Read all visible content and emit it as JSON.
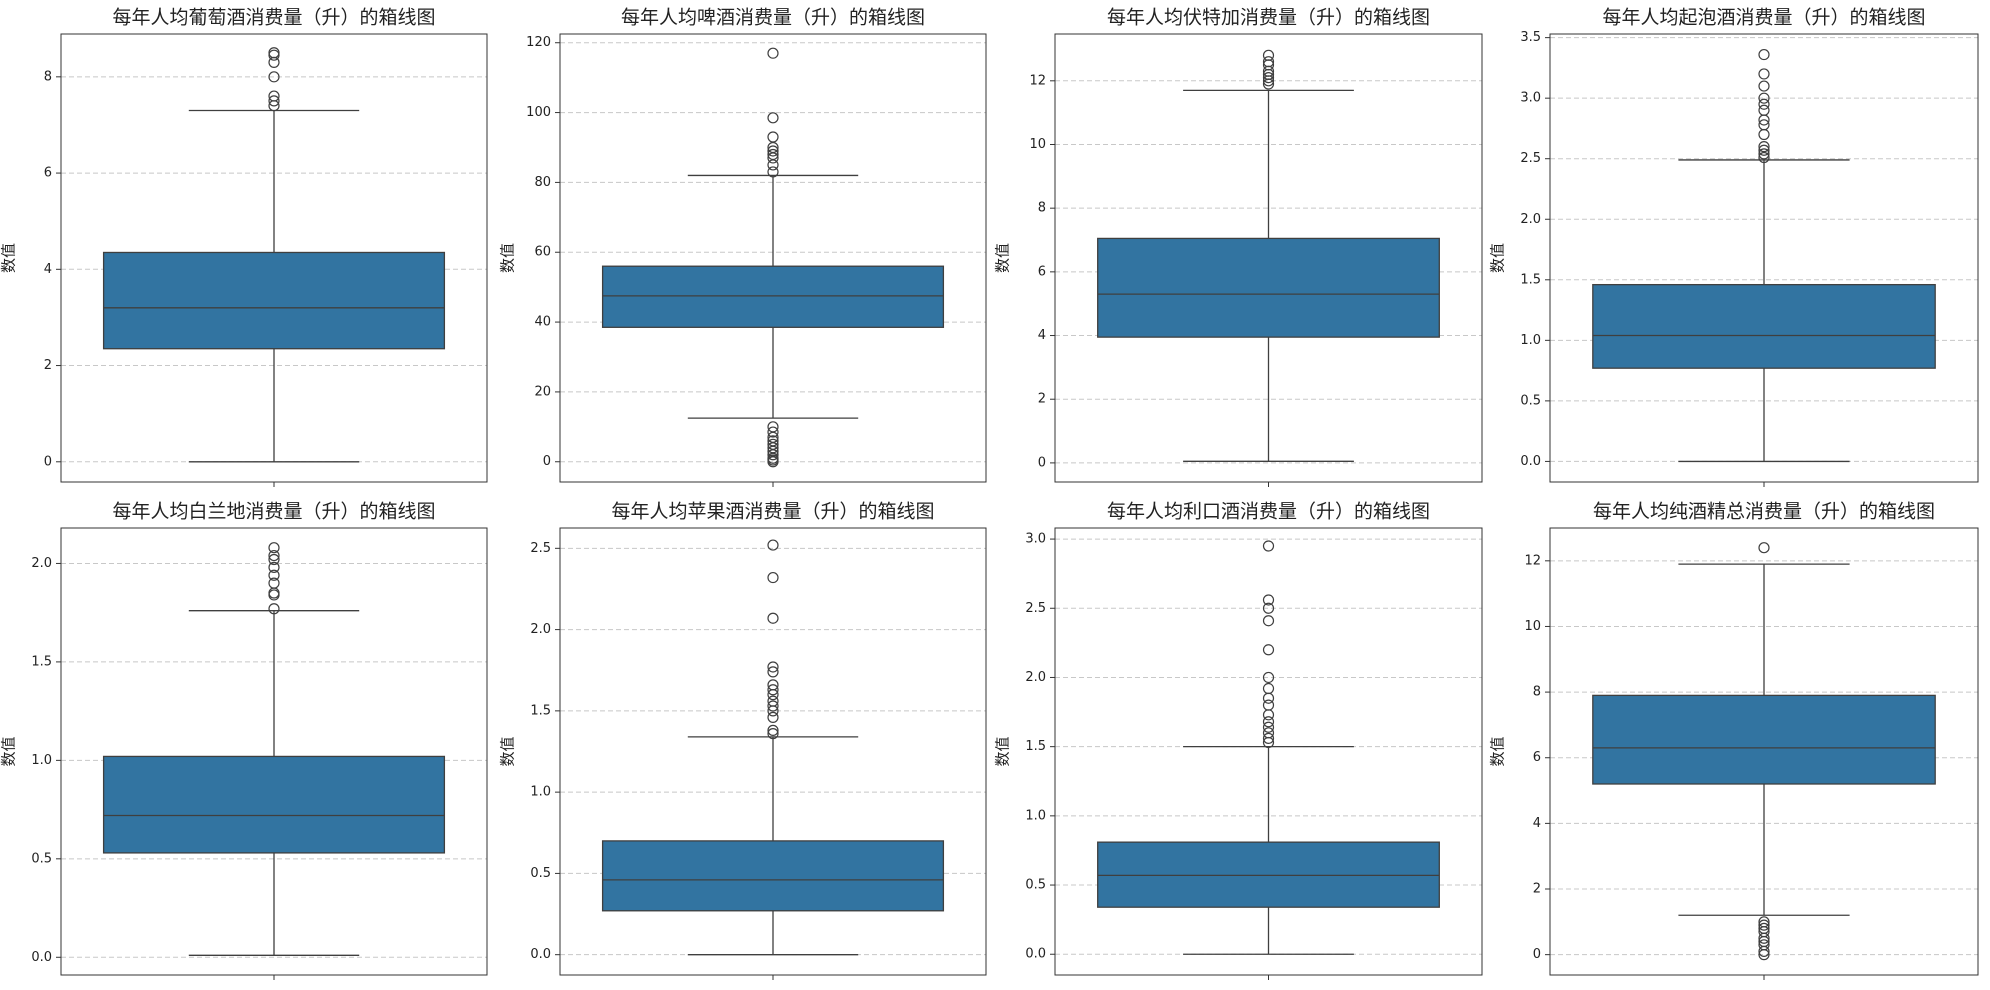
{
  "chart_data": [
    {
      "type": "box",
      "title": "每年人均葡萄酒消费量（升）的箱线图",
      "ylabel": "数值",
      "color": "#3274a1",
      "grid": true,
      "ylim": [
        -0.42,
        8.89
      ],
      "yticks": [
        0,
        2,
        4,
        6,
        8
      ],
      "box": {
        "whislo": 0,
        "q1": 2.35,
        "med": 3.2,
        "q3": 4.35,
        "whishi": 7.3,
        "fliers": [
          7.4,
          7.5,
          7.6,
          8.0,
          8.3,
          8.45,
          8.5
        ]
      }
    },
    {
      "type": "box",
      "title": "每年人均啤酒消费量（升）的箱线图",
      "ylabel": "数值",
      "color": "#3274a1",
      "grid": true,
      "ylim": [
        -5.8,
        122.5
      ],
      "yticks": [
        0,
        20,
        40,
        60,
        80,
        100,
        120
      ],
      "box": {
        "whislo": 12.5,
        "q1": 38.5,
        "med": 47.5,
        "q3": 56,
        "whishi": 82,
        "fliers": [
          83,
          85,
          87,
          88,
          89,
          90,
          93,
          98.5,
          117,
          10,
          8.5,
          7,
          6,
          5,
          4,
          3,
          2,
          1,
          0.5,
          0
        ]
      }
    },
    {
      "type": "box",
      "title": "每年人均伏特加消费量（升）的箱线图",
      "ylabel": "数值",
      "color": "#3274a1",
      "grid": true,
      "ylim": [
        -0.6,
        13.47
      ],
      "yticks": [
        0,
        2,
        4,
        6,
        8,
        10,
        12
      ],
      "box": {
        "whislo": 0.05,
        "q1": 3.95,
        "med": 5.3,
        "q3": 7.05,
        "whishi": 11.7,
        "fliers": [
          11.9,
          12.0,
          12.1,
          12.2,
          12.3,
          12.5,
          12.6,
          12.8
        ]
      }
    },
    {
      "type": "box",
      "title": "每年人均起泡酒消费量（升）的箱线图",
      "ylabel": "数值",
      "color": "#3274a1",
      "grid": true,
      "ylim": [
        -0.17,
        3.53
      ],
      "yticks": [
        {
          "value": 0,
          "label": "0.0"
        },
        0.5,
        {
          "value": 1,
          "label": "1.0"
        },
        1.5,
        {
          "value": 2,
          "label": "2.0"
        },
        2.5,
        {
          "value": 3,
          "label": "3.0"
        },
        3.5
      ],
      "box": {
        "whislo": 0,
        "q1": 0.77,
        "med": 1.04,
        "q3": 1.46,
        "whishi": 2.49,
        "fliers": [
          2.51,
          2.54,
          2.57,
          2.6,
          2.7,
          2.78,
          2.82,
          2.9,
          2.95,
          3.0,
          3.1,
          3.2,
          3.36
        ]
      }
    },
    {
      "type": "box",
      "title": "每年人均白兰地消费量（升）的箱线图",
      "ylabel": "数值",
      "color": "#3274a1",
      "grid": true,
      "ylim": [
        -0.09,
        2.18
      ],
      "yticks": [
        {
          "value": 0,
          "label": "0.0"
        },
        0.5,
        {
          "value": 1,
          "label": "1.0"
        },
        1.5,
        {
          "value": 2,
          "label": "2.0"
        }
      ],
      "box": {
        "whislo": 0.01,
        "q1": 0.53,
        "med": 0.72,
        "q3": 1.02,
        "whishi": 1.76,
        "fliers": [
          1.77,
          1.84,
          1.85,
          1.9,
          1.94,
          1.98,
          2.02,
          2.04,
          2.08
        ]
      }
    },
    {
      "type": "box",
      "title": "每年人均苹果酒消费量（升）的箱线图",
      "ylabel": "数值",
      "color": "#3274a1",
      "grid": true,
      "ylim": [
        -0.125,
        2.625
      ],
      "yticks": [
        {
          "value": 0,
          "label": "0.0"
        },
        0.5,
        {
          "value": 1,
          "label": "1.0"
        },
        1.5,
        {
          "value": 2,
          "label": "2.0"
        },
        2.5
      ],
      "box": {
        "whislo": 0,
        "q1": 0.27,
        "med": 0.46,
        "q3": 0.7,
        "whishi": 1.34,
        "fliers": [
          1.36,
          1.38,
          1.46,
          1.5,
          1.53,
          1.56,
          1.6,
          1.63,
          1.66,
          1.74,
          1.77,
          2.07,
          2.32,
          2.52
        ]
      }
    },
    {
      "type": "box",
      "title": "每年人均利口酒消费量（升）的箱线图",
      "ylabel": "数值",
      "color": "#3274a1",
      "grid": true,
      "ylim": [
        -0.15,
        3.08
      ],
      "yticks": [
        {
          "value": 0,
          "label": "0.0"
        },
        0.5,
        {
          "value": 1,
          "label": "1.0"
        },
        1.5,
        {
          "value": 2,
          "label": "2.0"
        },
        2.5,
        {
          "value": 3,
          "label": "3.0"
        }
      ],
      "box": {
        "whislo": 0,
        "q1": 0.34,
        "med": 0.57,
        "q3": 0.81,
        "whishi": 1.5,
        "fliers": [
          1.53,
          1.56,
          1.6,
          1.64,
          1.68,
          1.73,
          1.8,
          1.85,
          1.92,
          2.0,
          2.2,
          2.41,
          2.5,
          2.56,
          2.95
        ]
      }
    },
    {
      "type": "box",
      "title": "每年人均纯酒精总消费量（升）的箱线图",
      "ylabel": "数值",
      "color": "#3274a1",
      "grid": true,
      "ylim": [
        -0.62,
        13.0
      ],
      "yticks": [
        0,
        2,
        4,
        6,
        8,
        10,
        12
      ],
      "box": {
        "whislo": 1.2,
        "q1": 5.2,
        "med": 6.3,
        "q3": 7.9,
        "whishi": 11.9,
        "fliers": [
          12.4,
          1.0,
          0.9,
          0.8,
          0.7,
          0.5,
          0.4,
          0.3,
          0.1,
          0.0
        ]
      }
    }
  ]
}
